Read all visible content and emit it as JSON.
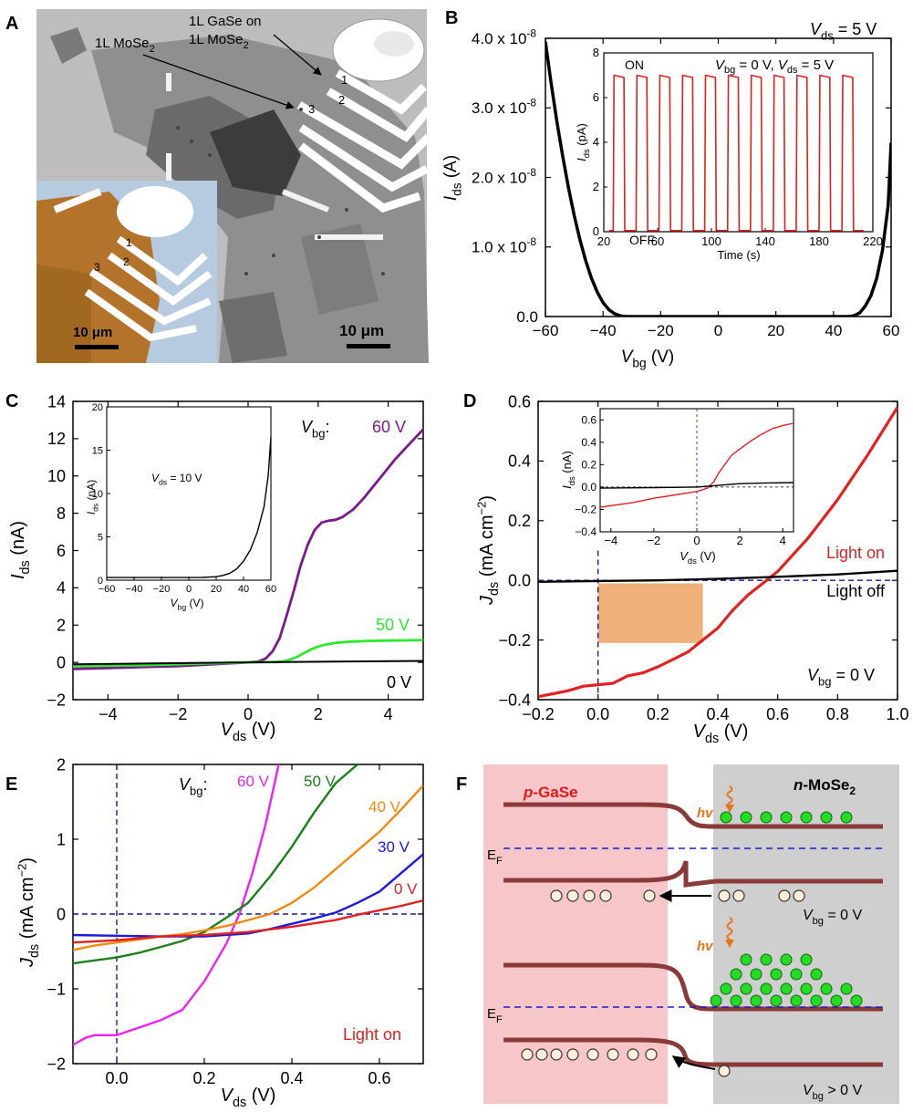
{
  "panels": {
    "A": {
      "letter": "A",
      "labels": {
        "gase_line1": "1L GaSe on",
        "gase_line2": "1L MoSe",
        "gase_sub": "2",
        "mose": "1L MoSe",
        "mose_sub": "2",
        "n1": "1",
        "n2": "2",
        "n3": "3",
        "in1": "1",
        "in2": "2",
        "in3": "3",
        "scale_main": "10 μm",
        "scale_inset": "10 μm"
      }
    },
    "B": {
      "letter": "B"
    },
    "C": {
      "letter": "C"
    },
    "D": {
      "letter": "D"
    },
    "E": {
      "letter": "E"
    },
    "F": {
      "letter": "F",
      "labels": {
        "pgase_p": "p",
        "pgase_rest": "-GaSe",
        "nmose_n": "n",
        "nmose_rest": "-MoSe",
        "nmose_sub": "2",
        "hv": "hv",
        "ef": "E",
        "ef_sub": "F",
        "vbg0_v": "V",
        "vbg0_sub": "bg",
        "vbg0_rest": " = 0 V",
        "vbgp_v": "V",
        "vbgp_sub": "bg",
        "vbgp_rest": " > 0 V"
      }
    }
  },
  "chart_data": [
    {
      "panel": "B",
      "type": "line",
      "xlabel_main": "V",
      "xlabel_sub": "bg",
      "xlabel_unit": " (V)",
      "ylabel_main": "I",
      "ylabel_sub": "ds",
      "ylabel_unit": " (A)",
      "xlim": [
        -60,
        60
      ],
      "ylim": [
        0,
        4e-08
      ],
      "xticks": [
        "-60",
        "-40",
        "-20",
        "0",
        "20",
        "40",
        "60"
      ],
      "yticks": [
        "0.0",
        "1.0 x 10",
        "2.0 x 10",
        "3.0 x 10",
        "4.0 x 10"
      ],
      "ytick_exp": "-8",
      "annotation_main": "V",
      "annotation_sub": "ds",
      "annotation_rest": " = 5 V",
      "series": [
        {
          "color": "#000000",
          "x": [
            -60,
            -58,
            -56,
            -54,
            -52,
            -50,
            -48,
            -46,
            -44,
            -42,
            -40,
            -38,
            -36,
            -34,
            -32,
            -30,
            -20,
            0,
            20,
            40,
            45,
            47,
            49,
            51,
            53,
            55,
            57,
            59,
            60
          ],
          "y": [
            3.95e-08,
            3.35e-08,
            2.8e-08,
            2.3e-08,
            1.85e-08,
            1.45e-08,
            1.1e-08,
            8e-09,
            5.5e-09,
            3.5e-09,
            2e-09,
            1e-09,
            4e-10,
            1e-10,
            0.0,
            0.0,
            0.0,
            0.0,
            0.0,
            0.0,
            0.0,
            1e-10,
            5e-10,
            1.5e-09,
            3e-09,
            5.5e-09,
            9.5e-09,
            1.6e-08,
            2.5e-08
          ]
        }
      ],
      "inset": {
        "xlabel": "Time (s)",
        "ylabel_main": "I",
        "ylabel_sub": "ds",
        "ylabel_unit": " (pA)",
        "xlim": [
          20,
          220
        ],
        "ylim": [
          0,
          8
        ],
        "xticks": [
          "20",
          "60",
          "100",
          "140",
          "180",
          "220"
        ],
        "yticks": [
          "0",
          "2",
          "4",
          "6",
          "8"
        ],
        "on_label": "ON",
        "off_label": "OFF",
        "cond_v1": "V",
        "cond_sub1": "bg",
        "cond_rest1": " = 0 V, ",
        "cond_v2": "V",
        "cond_sub2": "ds",
        "cond_rest2": " = 5 V",
        "color": "#e02020",
        "pulses_on": [
          [
            27,
            35
          ],
          [
            44,
            52
          ],
          [
            61,
            69
          ],
          [
            78,
            86
          ],
          [
            95,
            103
          ],
          [
            112,
            120
          ],
          [
            129,
            137
          ],
          [
            146,
            154
          ],
          [
            163,
            171
          ],
          [
            180,
            188
          ],
          [
            197,
            205
          ]
        ],
        "high": 7.0,
        "low": 0.05
      }
    },
    {
      "panel": "C",
      "type": "line",
      "xlabel_main": "V",
      "xlabel_sub": "ds",
      "xlabel_unit": " (V)",
      "ylabel_main": "I",
      "ylabel_sub": "ds",
      "ylabel_unit": " (nA)",
      "xlim": [
        -5,
        5
      ],
      "ylim": [
        -2,
        14
      ],
      "xticks": [
        "-4",
        "-2",
        "0",
        "2",
        "4"
      ],
      "yticks": [
        "-2",
        "0",
        "2",
        "4",
        "6",
        "8",
        "10",
        "12",
        "14"
      ],
      "vbg_label_main": "V",
      "vbg_label_sub": "bg",
      "vbg_label_rest": ":",
      "series": [
        {
          "name": "60 V",
          "color": "#7a1a8a",
          "x": [
            -5,
            -4,
            -3,
            -2,
            -1,
            0,
            0.3,
            0.5,
            0.7,
            0.9,
            1.1,
            1.3,
            1.5,
            1.7,
            1.9,
            2.1,
            2.3,
            2.5,
            2.7,
            3,
            3.3,
            3.6,
            3.9,
            4.2,
            4.5,
            4.8,
            5
          ],
          "y": [
            -0.35,
            -0.3,
            -0.25,
            -0.2,
            -0.1,
            0,
            0.05,
            0.2,
            0.6,
            1.3,
            2.5,
            3.8,
            5.2,
            6.3,
            7.1,
            7.5,
            7.6,
            7.65,
            7.8,
            8.2,
            8.8,
            9.5,
            10.2,
            10.9,
            11.5,
            12.1,
            12.5
          ]
        },
        {
          "name": "50 V",
          "color": "#2ee82e",
          "x": [
            -5,
            -3,
            -1,
            0,
            0.8,
            1.0,
            1.2,
            1.4,
            1.6,
            1.8,
            2.0,
            2.2,
            2.5,
            3,
            3.5,
            4,
            4.5,
            5
          ],
          "y": [
            -0.2,
            -0.15,
            -0.05,
            0,
            0.02,
            0.05,
            0.15,
            0.3,
            0.5,
            0.7,
            0.85,
            0.95,
            1.05,
            1.12,
            1.15,
            1.17,
            1.18,
            1.2
          ]
        },
        {
          "name": "0 V",
          "color": "#000000",
          "x": [
            -5,
            -3,
            -1,
            0,
            1,
            3,
            5
          ],
          "y": [
            -0.1,
            -0.06,
            -0.02,
            0,
            0.02,
            0.05,
            0.08
          ]
        }
      ],
      "inset": {
        "xlabel_main": "V",
        "xlabel_sub": "bg",
        "xlabel_unit": " (V)",
        "ylabel_main": "I",
        "ylabel_sub": "ds",
        "ylabel_unit": " (nA)",
        "xlim": [
          -60,
          60
        ],
        "ylim": [
          0,
          20
        ],
        "xticks": [
          "-60",
          "-40",
          "-20",
          "0",
          "20",
          "40",
          "60"
        ],
        "yticks": [
          "0",
          "5",
          "10",
          "15",
          "20"
        ],
        "cond_main": "V",
        "cond_sub": "ds",
        "cond_rest": " = 10 V",
        "color": "#000000",
        "x": [
          -60,
          -40,
          -20,
          0,
          10,
          20,
          25,
          30,
          35,
          40,
          45,
          50,
          55,
          58,
          60
        ],
        "y": [
          0.3,
          0.3,
          0.3,
          0.3,
          0.32,
          0.4,
          0.55,
          0.8,
          1.3,
          2.2,
          3.5,
          5.5,
          8.5,
          12,
          16.5
        ]
      }
    },
    {
      "panel": "D",
      "type": "line",
      "xlabel_main": "V",
      "xlabel_sub": "ds",
      "xlabel_unit": " (V)",
      "ylabel_main": "J",
      "ylabel_sub": "ds",
      "ylabel_unit": " (mA cm",
      "ylabel_exp": "−2",
      "ylabel_close": ")",
      "xlim": [
        -0.2,
        1.0
      ],
      "ylim": [
        -0.4,
        0.6
      ],
      "xticks": [
        "-0.2",
        "0.0",
        "0.2",
        "0.4",
        "0.6",
        "0.8",
        "1.0"
      ],
      "yticks": [
        "-0.4",
        "-0.2",
        "0.0",
        "0.2",
        "0.4",
        "0.6"
      ],
      "light_on": "Light on",
      "light_off": "Light off",
      "cond_main": "V",
      "cond_sub": "bg",
      "cond_rest": " = 0 V",
      "series": [
        {
          "name": "Light on",
          "color": "#e52020",
          "x": [
            -0.2,
            -0.15,
            -0.1,
            -0.05,
            0,
            0.05,
            0.1,
            0.15,
            0.2,
            0.25,
            0.3,
            0.35,
            0.4,
            0.45,
            0.5,
            0.55,
            0.6,
            0.7,
            0.8,
            0.9,
            1.0
          ],
          "y": [
            -0.39,
            -0.38,
            -0.37,
            -0.355,
            -0.35,
            -0.345,
            -0.32,
            -0.31,
            -0.29,
            -0.265,
            -0.24,
            -0.2,
            -0.16,
            -0.1,
            -0.05,
            -0.01,
            0.03,
            0.14,
            0.27,
            0.42,
            0.58
          ]
        },
        {
          "name": "Light off",
          "color": "#000000",
          "x": [
            -0.2,
            0,
            0.2,
            0.4,
            0.6,
            0.8,
            1.0
          ],
          "y": [
            -0.005,
            -0.002,
            0.0,
            0.005,
            0.012,
            0.02,
            0.032
          ]
        }
      ],
      "fill_rect": {
        "x0": 0.0,
        "x1": 0.35,
        "y0": -0.21,
        "y1": -0.01,
        "color": "#f0b07a"
      },
      "inset": {
        "xlabel_main": "V",
        "xlabel_sub": "ds",
        "xlabel_unit": " (V)",
        "ylabel_main": "I",
        "ylabel_sub": "ds",
        "ylabel_unit": " (nA)",
        "xlim": [
          -4.5,
          4.5
        ],
        "ylim": [
          -0.4,
          0.7
        ],
        "xticks": [
          "-4",
          "-2",
          "0",
          "2",
          "4"
        ],
        "yticks": [
          "-0.4",
          "-0.2",
          "0.0",
          "0.2",
          "0.4",
          "0.6"
        ],
        "series": [
          {
            "color": "#e52020",
            "x": [
              -4.5,
              -3,
              -2,
              -1,
              0,
              0.5,
              0.8,
              1.0,
              1.3,
              1.6,
              2,
              2.5,
              3,
              3.5,
              4,
              4.5
            ],
            "y": [
              -0.18,
              -0.14,
              -0.1,
              -0.07,
              -0.04,
              -0.01,
              0.05,
              0.12,
              0.2,
              0.28,
              0.34,
              0.41,
              0.47,
              0.52,
              0.55,
              0.57
            ]
          },
          {
            "color": "#000000",
            "x": [
              -4.5,
              -2,
              0,
              1,
              2,
              3,
              4.5
            ],
            "y": [
              -0.01,
              -0.005,
              0.0,
              0.015,
              0.03,
              0.035,
              0.04
            ]
          }
        ]
      }
    },
    {
      "panel": "E",
      "type": "line",
      "xlabel_main": "V",
      "xlabel_sub": "ds",
      "xlabel_unit": " (V)",
      "ylabel_main": "J",
      "ylabel_sub": "ds",
      "ylabel_unit": " (mA cm",
      "ylabel_exp": "−2",
      "ylabel_close": ")",
      "xlim": [
        -0.1,
        0.7
      ],
      "ylim": [
        -2,
        2
      ],
      "xticks": [
        "0.0",
        "0.2",
        "0.4",
        "0.6"
      ],
      "yticks": [
        "-2",
        "-1",
        "0",
        "1",
        "2"
      ],
      "vbg_label_main": "V",
      "vbg_label_sub": "bg",
      "vbg_label_rest": ":",
      "light_on": "Light on",
      "series": [
        {
          "name": "60 V",
          "color": "#ee22ee",
          "x": [
            -0.1,
            -0.07,
            -0.05,
            0,
            0.05,
            0.1,
            0.15,
            0.2,
            0.25,
            0.28,
            0.31,
            0.34,
            0.37
          ],
          "y": [
            -1.75,
            -1.65,
            -1.62,
            -1.62,
            -1.52,
            -1.42,
            -1.28,
            -0.9,
            -0.4,
            0.0,
            0.55,
            1.2,
            2.0
          ]
        },
        {
          "name": "50 V",
          "color": "#1a801a",
          "x": [
            -0.1,
            -0.05,
            0,
            0.05,
            0.1,
            0.15,
            0.2,
            0.25,
            0.3,
            0.35,
            0.4,
            0.45,
            0.5,
            0.55
          ],
          "y": [
            -0.66,
            -0.62,
            -0.58,
            -0.52,
            -0.44,
            -0.36,
            -0.24,
            -0.05,
            0.15,
            0.5,
            0.9,
            1.35,
            1.75,
            2.0
          ]
        },
        {
          "name": "40 V",
          "color": "#f08a10",
          "x": [
            -0.1,
            -0.05,
            0,
            0.05,
            0.1,
            0.15,
            0.2,
            0.25,
            0.3,
            0.35,
            0.4,
            0.45,
            0.5,
            0.55,
            0.6,
            0.65,
            0.7
          ],
          "y": [
            -0.48,
            -0.42,
            -0.38,
            -0.34,
            -0.3,
            -0.27,
            -0.22,
            -0.16,
            -0.08,
            0.0,
            0.15,
            0.35,
            0.6,
            0.85,
            1.1,
            1.4,
            1.72
          ]
        },
        {
          "name": "30 V",
          "color": "#1a1ae0",
          "x": [
            -0.1,
            0,
            0.1,
            0.2,
            0.3,
            0.35,
            0.4,
            0.45,
            0.5,
            0.55,
            0.6,
            0.65,
            0.7
          ],
          "y": [
            -0.28,
            -0.29,
            -0.3,
            -0.3,
            -0.26,
            -0.2,
            -0.13,
            -0.06,
            0.02,
            0.15,
            0.3,
            0.55,
            0.8
          ]
        },
        {
          "name": "0 V",
          "color": "#e02020",
          "x": [
            -0.1,
            0,
            0.1,
            0.2,
            0.3,
            0.4,
            0.5,
            0.55,
            0.6,
            0.65,
            0.7
          ],
          "y": [
            -0.38,
            -0.35,
            -0.3,
            -0.28,
            -0.24,
            -0.17,
            -0.08,
            -0.01,
            0.05,
            0.11,
            0.18
          ]
        }
      ]
    }
  ]
}
